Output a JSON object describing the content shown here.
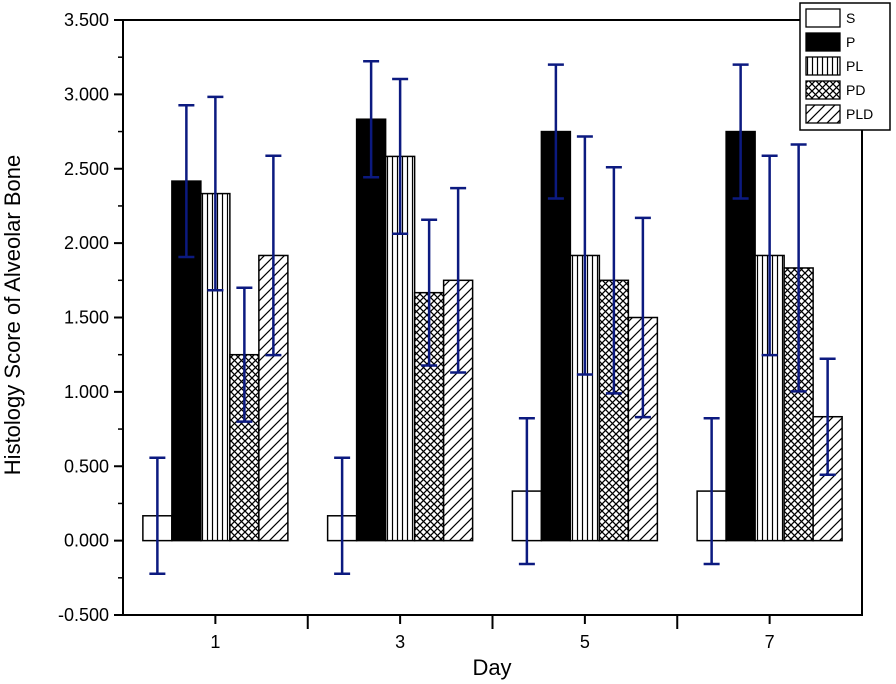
{
  "chart_data": {
    "type": "bar",
    "title": "",
    "xlabel": "Day",
    "ylabel": "Histology Score of Alveolar Bone",
    "ylim": [
      -0.5,
      3.5
    ],
    "yticks": [
      -0.5,
      0.0,
      0.5,
      1.0,
      1.5,
      2.0,
      2.5,
      3.0,
      3.5
    ],
    "ytick_labels": [
      "-0.500",
      "0.000",
      "0.500",
      "1.000",
      "1.500",
      "2.000",
      "2.500",
      "3.000",
      "3.500"
    ],
    "categories": [
      "1",
      "3",
      "5",
      "7"
    ],
    "legend_position": "top-right",
    "error_bar_color": "#0c1a80",
    "series": [
      {
        "name": "S",
        "pattern": "empty",
        "values": [
          0.167,
          0.167,
          0.333,
          0.333
        ],
        "errors": [
          0.39,
          0.39,
          0.49,
          0.49
        ]
      },
      {
        "name": "P",
        "pattern": "solid",
        "values": [
          2.417,
          2.833,
          2.75,
          2.75
        ],
        "errors": [
          0.51,
          0.39,
          0.45,
          0.45
        ]
      },
      {
        "name": "PL",
        "pattern": "vertical",
        "values": [
          2.333,
          2.583,
          1.917,
          1.917
        ],
        "errors": [
          0.65,
          0.52,
          0.8,
          0.67
        ]
      },
      {
        "name": "PD",
        "pattern": "crosshatch",
        "values": [
          1.25,
          1.667,
          1.75,
          1.833
        ],
        "errors": [
          0.45,
          0.49,
          0.76,
          0.83
        ]
      },
      {
        "name": "PLD",
        "pattern": "diagonal",
        "values": [
          1.917,
          1.75,
          1.5,
          0.833
        ],
        "errors": [
          0.67,
          0.62,
          0.67,
          0.39
        ]
      }
    ]
  }
}
